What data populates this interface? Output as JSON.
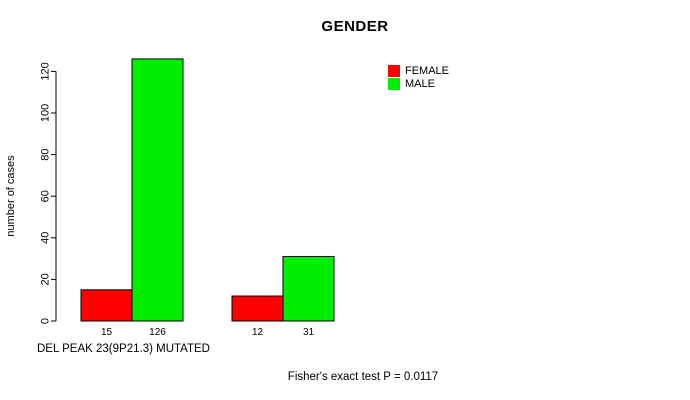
{
  "figure": {
    "background": "#ffffff",
    "text_color": "#000000"
  },
  "chart_data": {
    "type": "bar",
    "title": "GENDER",
    "ylabel": "number of cases",
    "xlabel": "DEL PEAK 23(9P21.3) MUTATED",
    "annotation": "Fisher's exact test P = 0.0117",
    "ylim": [
      0,
      120
    ],
    "yticks": [
      0,
      20,
      40,
      60,
      80,
      100,
      120
    ],
    "grid": false,
    "legend_position": "top-right",
    "series": [
      {
        "name": "FEMALE",
        "color": "#ff0000",
        "values": [
          15,
          12
        ]
      },
      {
        "name": "MALE",
        "color": "#00ee00",
        "values": [
          126,
          31
        ]
      }
    ],
    "x_tick_labels": [
      "15",
      "126",
      "12",
      "31"
    ]
  }
}
